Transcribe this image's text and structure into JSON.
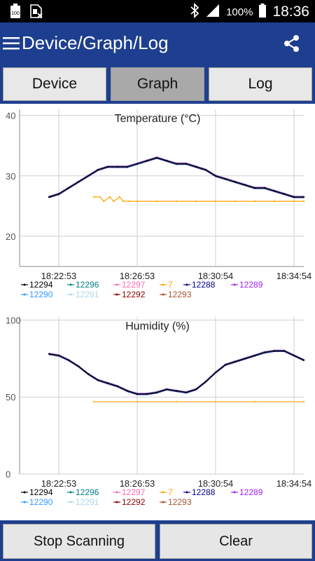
{
  "status_bar": {
    "battery_label": "100",
    "battery_percent": "100%",
    "time": "18:36"
  },
  "app_bar": {
    "title": "Device/Graph/Log"
  },
  "tabs": [
    {
      "label": "Device"
    },
    {
      "label": "Graph"
    },
    {
      "label": "Log"
    }
  ],
  "active_tab": "Graph",
  "bottom_buttons": {
    "stop": "Stop Scanning",
    "clear": "Clear"
  },
  "chart_data": [
    {
      "type": "line",
      "title": "Temperature (°C)",
      "ylim": [
        15,
        41
      ],
      "yticks": [
        "40",
        "30",
        "20"
      ],
      "ytick_values": [
        40,
        30,
        20
      ],
      "xlim": [
        0,
        14.5
      ],
      "xticks": [
        "18:22:53",
        "18:26:53",
        "18:30:54",
        "18:34:54"
      ],
      "xtick_values": [
        2,
        6,
        10,
        14
      ],
      "legend": [
        {
          "name": "12294",
          "color": "#000000"
        },
        {
          "name": "12296",
          "color": "#008080"
        },
        {
          "name": "12297",
          "color": "#ff69b4"
        },
        {
          "name": "7",
          "color": "#ffa500"
        },
        {
          "name": "12288",
          "color": "#00008b"
        },
        {
          "name": "12289",
          "color": "#a020f0"
        },
        {
          "name": "12290",
          "color": "#3399ff"
        },
        {
          "name": "12291",
          "color": "#add8e6"
        },
        {
          "name": "12292",
          "color": "#8b0000"
        },
        {
          "name": "12293",
          "color": "#a0522d"
        }
      ],
      "series": [
        {
          "name": "12294",
          "x": [
            1.5,
            2.0,
            2.5,
            3.0,
            3.5,
            4.0,
            4.5,
            5.0,
            5.5,
            6.0,
            6.5,
            7.0,
            7.5,
            8.0,
            8.5,
            9.0,
            9.5,
            10.0,
            10.5,
            11.0,
            11.5,
            12.0,
            12.5,
            13.0,
            13.5,
            14.0,
            14.5
          ],
          "y": [
            26.5,
            27.0,
            28.0,
            29.0,
            30.0,
            31.0,
            31.5,
            31.5,
            31.5,
            32.0,
            32.5,
            33.0,
            32.5,
            32.0,
            32.0,
            31.5,
            31.0,
            30.0,
            29.5,
            29.0,
            28.5,
            28.0,
            28.0,
            27.5,
            27.0,
            26.5,
            26.5
          ]
        },
        {
          "name": "7",
          "x": [
            3.8,
            4.1,
            4.3,
            4.6,
            4.8,
            5.1,
            5.3,
            5.6,
            6.0,
            7.0,
            8.0,
            9.0,
            10.0,
            11.0,
            12.0,
            13.0,
            14.0,
            14.5
          ],
          "y": [
            26.5,
            26.5,
            25.8,
            26.5,
            25.8,
            26.5,
            25.8,
            25.8,
            25.8,
            25.8,
            25.8,
            25.8,
            25.8,
            25.8,
            25.8,
            25.8,
            25.8,
            25.8
          ]
        }
      ]
    },
    {
      "type": "line",
      "title": "Humidity (%)",
      "ylim": [
        0,
        102
      ],
      "yticks": [
        "100",
        "50",
        "0"
      ],
      "ytick_values": [
        100,
        50,
        0
      ],
      "xlim": [
        0,
        14.5
      ],
      "xticks": [
        "18:22:53",
        "18:26:53",
        "18:30:54",
        "18:34:54"
      ],
      "xtick_values": [
        2,
        6,
        10,
        14
      ],
      "legend": [
        {
          "name": "12294",
          "color": "#000000"
        },
        {
          "name": "12296",
          "color": "#008080"
        },
        {
          "name": "12297",
          "color": "#ff69b4"
        },
        {
          "name": "7",
          "color": "#ffa500"
        },
        {
          "name": "12288",
          "color": "#00008b"
        },
        {
          "name": "12289",
          "color": "#a020f0"
        },
        {
          "name": "12290",
          "color": "#3399ff"
        },
        {
          "name": "12291",
          "color": "#add8e6"
        },
        {
          "name": "12292",
          "color": "#8b0000"
        },
        {
          "name": "12293",
          "color": "#a0522d"
        }
      ],
      "series": [
        {
          "name": "12294",
          "x": [
            1.5,
            2.0,
            2.5,
            3.0,
            3.5,
            4.0,
            4.5,
            5.0,
            5.5,
            6.0,
            6.5,
            7.0,
            7.5,
            8.0,
            8.5,
            9.0,
            9.5,
            10.0,
            10.5,
            11.0,
            11.5,
            12.0,
            12.5,
            13.0,
            13.5,
            14.0,
            14.5
          ],
          "y": [
            78,
            77,
            74,
            70,
            65,
            61,
            59,
            57,
            54,
            52,
            52,
            53,
            55,
            54,
            53,
            55,
            60,
            66,
            71,
            73,
            75,
            77,
            79,
            80,
            80,
            77,
            74
          ]
        },
        {
          "name": "7",
          "x": [
            3.8,
            6.0,
            8.0,
            10.0,
            12.0,
            14.5
          ],
          "y": [
            47,
            47,
            47,
            47,
            47,
            47
          ]
        }
      ]
    }
  ]
}
